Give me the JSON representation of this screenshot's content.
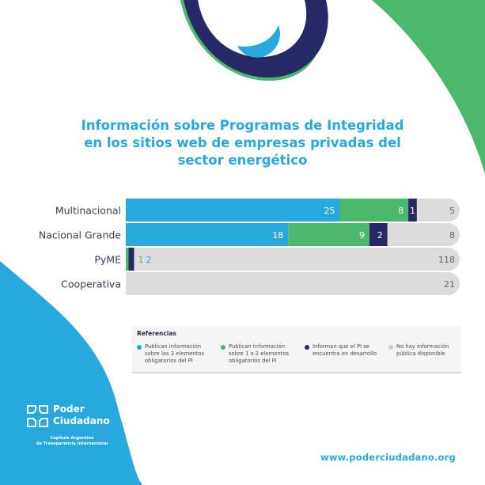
{
  "title_lines": [
    "Información sobre Programas de Integridad",
    "en los sitios web de empresas privadas del",
    "sector energético"
  ],
  "colors": {
    "cyan": "#27a9dd",
    "green": "#4cb86b",
    "navy": "#262966",
    "gray": "#dcdcdc",
    "white": "#ffffff"
  },
  "chart_data": {
    "type": "bar",
    "orientation": "horizontal",
    "stacked": true,
    "normalized": true,
    "categories": [
      "Multinacional",
      "Nacional Grande",
      "PyME",
      "Cooperativa"
    ],
    "series": [
      {
        "name": "Publican información sobre los 3 elementos obligatorios del PI",
        "color": "#27a9dd",
        "values": [
          25,
          18,
          0,
          0
        ]
      },
      {
        "name": "Publican información sobre 1 o 2 elementos obligatorios del PI",
        "color": "#4cb86b",
        "values": [
          8,
          9,
          1,
          0
        ]
      },
      {
        "name": "Informan que el PI se encuentra en desarrollo",
        "color": "#262966",
        "values": [
          1,
          2,
          2,
          0
        ]
      },
      {
        "name": "No hay información pública disponible",
        "color": "#dcdcdc",
        "values": [
          5,
          8,
          118,
          21
        ]
      }
    ],
    "legend_title": "Referencias",
    "legend_position": "bottom"
  },
  "footer": {
    "logo_lines": [
      "Poder",
      "Ciudadano"
    ],
    "logo_sub_lines": [
      "Capítulo Argentino",
      "de Transparencia Internacional"
    ],
    "website": "www.poderciudadano.org"
  }
}
